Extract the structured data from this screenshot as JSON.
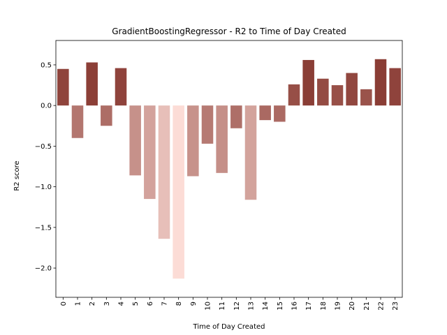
{
  "chart_data": {
    "type": "bar",
    "title": "GradientBoostingRegressor - R2 to Time of Day Created",
    "xlabel": "Time of Day Created",
    "ylabel": "R2 score",
    "categories": [
      "0",
      "1",
      "2",
      "3",
      "4",
      "5",
      "6",
      "7",
      "8",
      "9",
      "10",
      "11",
      "12",
      "13",
      "14",
      "15",
      "16",
      "17",
      "18",
      "19",
      "20",
      "21",
      "22",
      "23"
    ],
    "values": [
      0.45,
      -0.4,
      0.53,
      -0.25,
      0.46,
      -0.86,
      -1.15,
      -1.64,
      -2.13,
      -0.87,
      -0.47,
      -0.83,
      -0.28,
      -1.16,
      -0.18,
      -0.2,
      0.26,
      0.56,
      0.33,
      0.25,
      0.4,
      0.2,
      0.57,
      0.46
    ],
    "ylim": [
      -2.36,
      0.8
    ],
    "yticks": [
      0.5,
      0.0,
      -0.5,
      -1.0,
      -1.5,
      -2.0
    ],
    "ytick_labels": [
      "0.5",
      "0.0",
      "−0.5",
      "−1.0",
      "−1.5",
      "−2.0"
    ],
    "grid": false,
    "colors": {
      "low": "#fcdcd6",
      "high": "#8a3d35"
    }
  }
}
